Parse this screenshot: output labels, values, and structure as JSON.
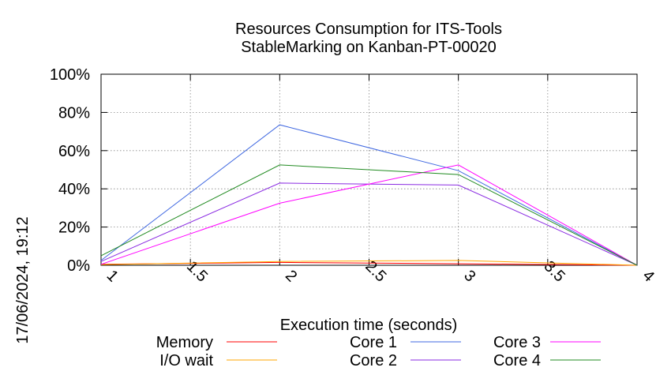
{
  "chart_data": {
    "type": "line",
    "title": "Resources Consumption for ITS-Tools",
    "subtitle": "StableMarking on Kanban-PT-00020",
    "xlabel": "Execution time (seconds)",
    "ylabel": "",
    "timestamp": "17/06/2024, 19:12",
    "xlim": [
      1,
      4
    ],
    "ylim": [
      0,
      100
    ],
    "x_ticks": [
      {
        "value": 1,
        "label": "1"
      },
      {
        "value": 1.5,
        "label": "1.5"
      },
      {
        "value": 2,
        "label": "2"
      },
      {
        "value": 2.5,
        "label": "2.5"
      },
      {
        "value": 3,
        "label": "3"
      },
      {
        "value": 3.5,
        "label": "3.5"
      },
      {
        "value": 4,
        "label": "4"
      }
    ],
    "y_ticks": [
      {
        "value": 0,
        "label": "0%"
      },
      {
        "value": 20,
        "label": "20%"
      },
      {
        "value": 40,
        "label": "40%"
      },
      {
        "value": 60,
        "label": "60%"
      },
      {
        "value": 80,
        "label": "80%"
      },
      {
        "value": 100,
        "label": "100%"
      }
    ],
    "grid": true,
    "legend_position": "bottom",
    "x": [
      1,
      2,
      3,
      4
    ],
    "series": [
      {
        "name": "Memory",
        "color": "#ff0000",
        "values": [
          0.5,
          1.5,
          0.8,
          0
        ]
      },
      {
        "name": "I/O wait",
        "color": "#ffa500",
        "values": [
          0.3,
          2.0,
          2.5,
          0
        ]
      },
      {
        "name": "Core 1",
        "color": "#4169e1",
        "values": [
          2.5,
          73.5,
          49.5,
          0
        ]
      },
      {
        "name": "Core 2",
        "color": "#8a2be2",
        "values": [
          2.0,
          43.0,
          42.0,
          0
        ]
      },
      {
        "name": "Core 3",
        "color": "#ff00ff",
        "values": [
          0.5,
          32.5,
          52.5,
          0
        ]
      },
      {
        "name": "Core 4",
        "color": "#228b22",
        "values": [
          5.0,
          52.5,
          47.5,
          0
        ]
      }
    ]
  }
}
